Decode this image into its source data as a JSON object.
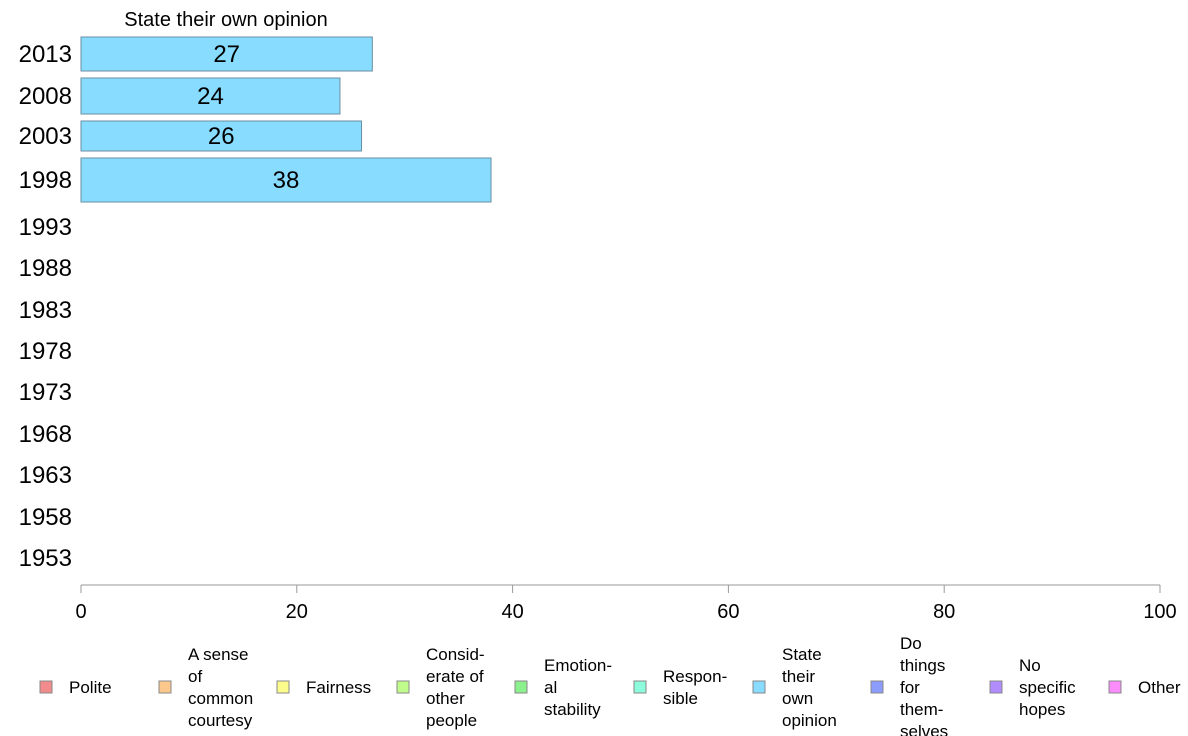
{
  "chart_data": {
    "type": "bar",
    "orientation": "horizontal",
    "title": "State their own opinion",
    "categories": [
      "2013",
      "2008",
      "2003",
      "1998",
      "1993",
      "1988",
      "1983",
      "1978",
      "1973",
      "1968",
      "1963",
      "1958",
      "1953"
    ],
    "series": [
      {
        "name": "State their own opinion",
        "color": "#87dcff",
        "values": [
          27,
          24,
          26,
          38,
          null,
          null,
          null,
          null,
          null,
          null,
          null,
          null,
          null
        ]
      }
    ],
    "xlim": [
      0,
      100
    ],
    "xticks": [
      0,
      20,
      40,
      60,
      80,
      100
    ],
    "grid": false,
    "legend_position": "bottom",
    "legend": [
      {
        "label": "Polite",
        "color": "#f28b8b"
      },
      {
        "label": "A sense of common courtesy",
        "color": "#fcc88c"
      },
      {
        "label": "Fairness",
        "color": "#fcfc8c"
      },
      {
        "label": "Consid-erate of other people",
        "color": "#c0fc8c"
      },
      {
        "label": "Emotion-al stability",
        "color": "#8cf08c"
      },
      {
        "label": "Respon-sible",
        "color": "#8cfcdc"
      },
      {
        "label": "State their own opinion",
        "color": "#87dcff"
      },
      {
        "label": "Do things for them-selves",
        "color": "#8c9cfc"
      },
      {
        "label": "No specific hopes",
        "color": "#b08cfc"
      },
      {
        "label": "Other",
        "color": "#fc8cfc"
      }
    ]
  }
}
